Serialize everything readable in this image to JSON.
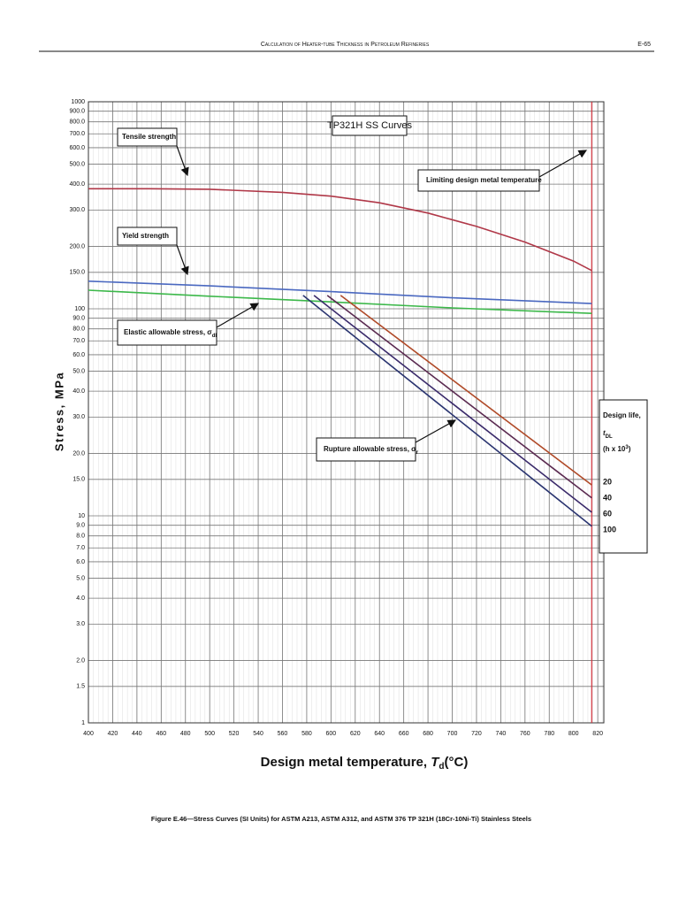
{
  "header": {
    "title": "Calculation of Heater-tube Thickness in Petroleum Refineries",
    "page": "E-65"
  },
  "chart_data": {
    "type": "line",
    "title": "TP321H SS Curves",
    "xlabel": {
      "text": "Design metal temperature,",
      "var": "T",
      "sub": "d",
      "unit": "(°C)"
    },
    "ylabel": "Stress, MPa",
    "xlim": [
      400,
      825
    ],
    "xticks": [
      400,
      420,
      440,
      460,
      480,
      500,
      520,
      540,
      560,
      580,
      600,
      620,
      640,
      660,
      680,
      700,
      720,
      740,
      760,
      780,
      800,
      820
    ],
    "ylim": [
      1,
      1000
    ],
    "log_y": true,
    "grid": true,
    "yticks": [
      1,
      1.5,
      {
        "value": 2,
        "label": "2.0"
      },
      {
        "value": 3,
        "label": "3.0"
      },
      {
        "value": 4,
        "label": "4.0"
      },
      {
        "value": 5,
        "label": "5.0"
      },
      {
        "value": 6,
        "label": "6.0"
      },
      {
        "value": 7,
        "label": "7.0"
      },
      {
        "value": 8,
        "label": "8.0"
      },
      {
        "value": 9,
        "label": "9.0"
      },
      10,
      {
        "value": 15,
        "label": "15.0"
      },
      {
        "value": 20,
        "label": "20.0"
      },
      {
        "value": 30,
        "label": "30.0"
      },
      {
        "value": 40,
        "label": "40.0"
      },
      {
        "value": 50,
        "label": "50.0"
      },
      {
        "value": 60,
        "label": "60.0"
      },
      {
        "value": 70,
        "label": "70.0"
      },
      {
        "value": 80,
        "label": "80.0"
      },
      {
        "value": 90,
        "label": "90.0"
      },
      100,
      {
        "value": 150,
        "label": "150.0"
      },
      {
        "value": 200,
        "label": "200.0"
      },
      {
        "value": 300,
        "label": "300.0"
      },
      {
        "value": 400,
        "label": "400.0"
      },
      {
        "value": 500,
        "label": "500.0"
      },
      {
        "value": 600,
        "label": "600.0"
      },
      {
        "value": 700,
        "label": "700.0"
      },
      {
        "value": 800,
        "label": "800.0"
      },
      {
        "value": 900,
        "label": "900.0"
      },
      1000
    ],
    "limit_temperature": 815,
    "limit_color": "#d0303a",
    "curves": [
      {
        "color": "#b03848",
        "x": [
          400,
          450,
          500,
          560,
          600,
          640,
          680,
          720,
          760,
          800,
          815
        ],
        "values": [
          380,
          380,
          378,
          365,
          350,
          325,
          290,
          250,
          210,
          170,
          153
        ]
      },
      {
        "color": "#4a68c0",
        "x": [
          400,
          500,
          600,
          700,
          815
        ],
        "values": [
          136,
          129,
          121,
          113,
          106
        ]
      },
      {
        "color": "#3cb84a",
        "x": [
          400,
          500,
          600,
          700,
          815
        ],
        "values": [
          123,
          115,
          108,
          101,
          95
        ]
      }
    ],
    "legend": {
      "title": "Design life,",
      "symbol": "t",
      "sub": "DL",
      "unit": "(h x 10",
      "unit_sup": "3",
      "unit_end": ")"
    },
    "series": [
      {
        "name": "20",
        "color": "#b04a28",
        "x": [
          608,
          815
        ],
        "values": [
          116,
          14.1
        ]
      },
      {
        "name": "40",
        "color": "#5a2a50",
        "x": [
          597,
          815
        ],
        "values": [
          116,
          12.2
        ]
      },
      {
        "name": "60",
        "color": "#3a2a6a",
        "x": [
          586,
          815
        ],
        "values": [
          116,
          10.4
        ]
      },
      {
        "name": "100",
        "color": "#2a3470",
        "x": [
          577,
          815
        ],
        "values": [
          116,
          8.9
        ]
      }
    ],
    "annotations": {
      "tensile": "Tensile strength",
      "yield": "Yield strength",
      "elastic": "Elastic allowable stress, σ",
      "elastic_sub": "dl",
      "limit": "Limiting design metal temperature",
      "rupture": "Rupture allowable stress, σ",
      "rupture_sub": "r"
    }
  },
  "caption": "Figure E.46—Stress Curves (SI Units) for ASTM A213, ASTM A312, and ASTM 376 TP 321H (18Cr-10Ni-Ti) Stainless Steels"
}
